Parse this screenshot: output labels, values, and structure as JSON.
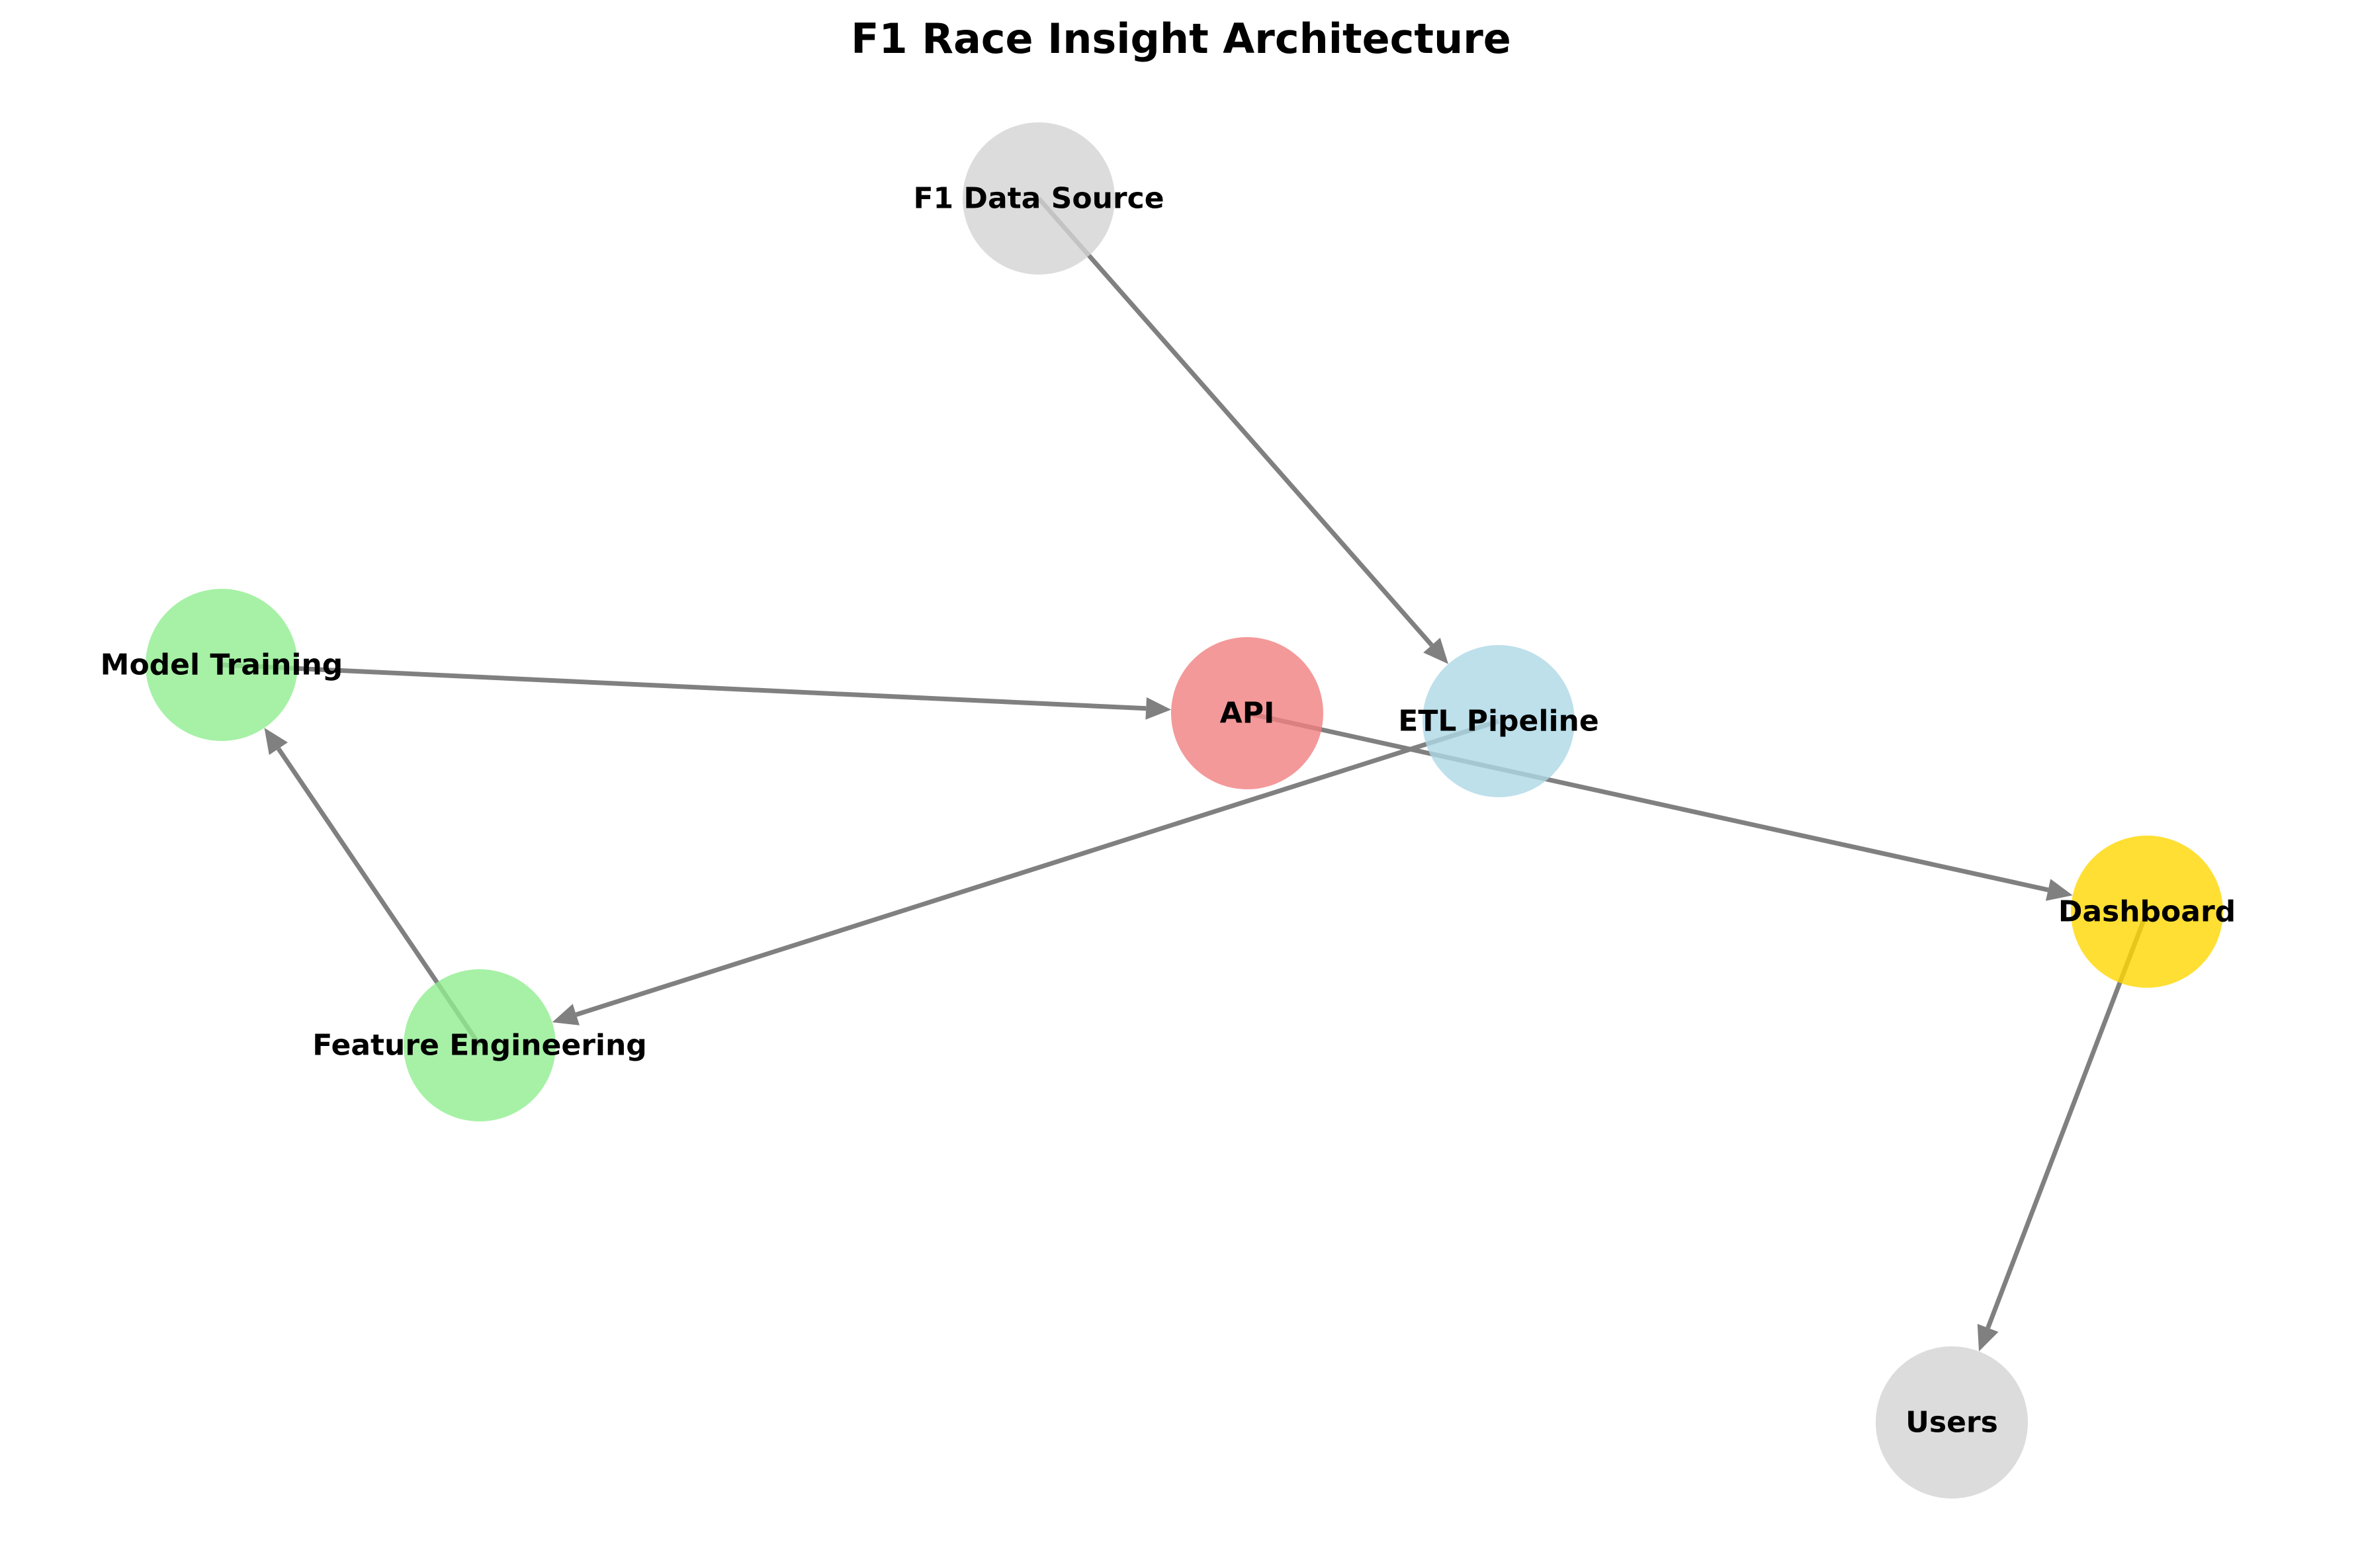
{
  "title": "F1 Race Insight Architecture",
  "nodes": [
    {
      "id": "f1_data_source",
      "label": "F1 Data Source",
      "color": "#d3d3d3"
    },
    {
      "id": "etl_pipeline",
      "label": "ETL Pipeline",
      "color": "#add8e6"
    },
    {
      "id": "api",
      "label": "API",
      "color": "#f08080"
    },
    {
      "id": "model_training",
      "label": "Model Training",
      "color": "#90ee90"
    },
    {
      "id": "feature_engineering",
      "label": "Feature Engineering",
      "color": "#90ee90"
    },
    {
      "id": "dashboard",
      "label": "Dashboard",
      "color": "#ffd700"
    },
    {
      "id": "users",
      "label": "Users",
      "color": "#d3d3d3"
    }
  ],
  "edges": [
    {
      "from": "f1_data_source",
      "to": "etl_pipeline"
    },
    {
      "from": "etl_pipeline",
      "to": "feature_engineering"
    },
    {
      "from": "feature_engineering",
      "to": "model_training"
    },
    {
      "from": "model_training",
      "to": "api"
    },
    {
      "from": "api",
      "to": "dashboard"
    },
    {
      "from": "dashboard",
      "to": "users"
    }
  ]
}
